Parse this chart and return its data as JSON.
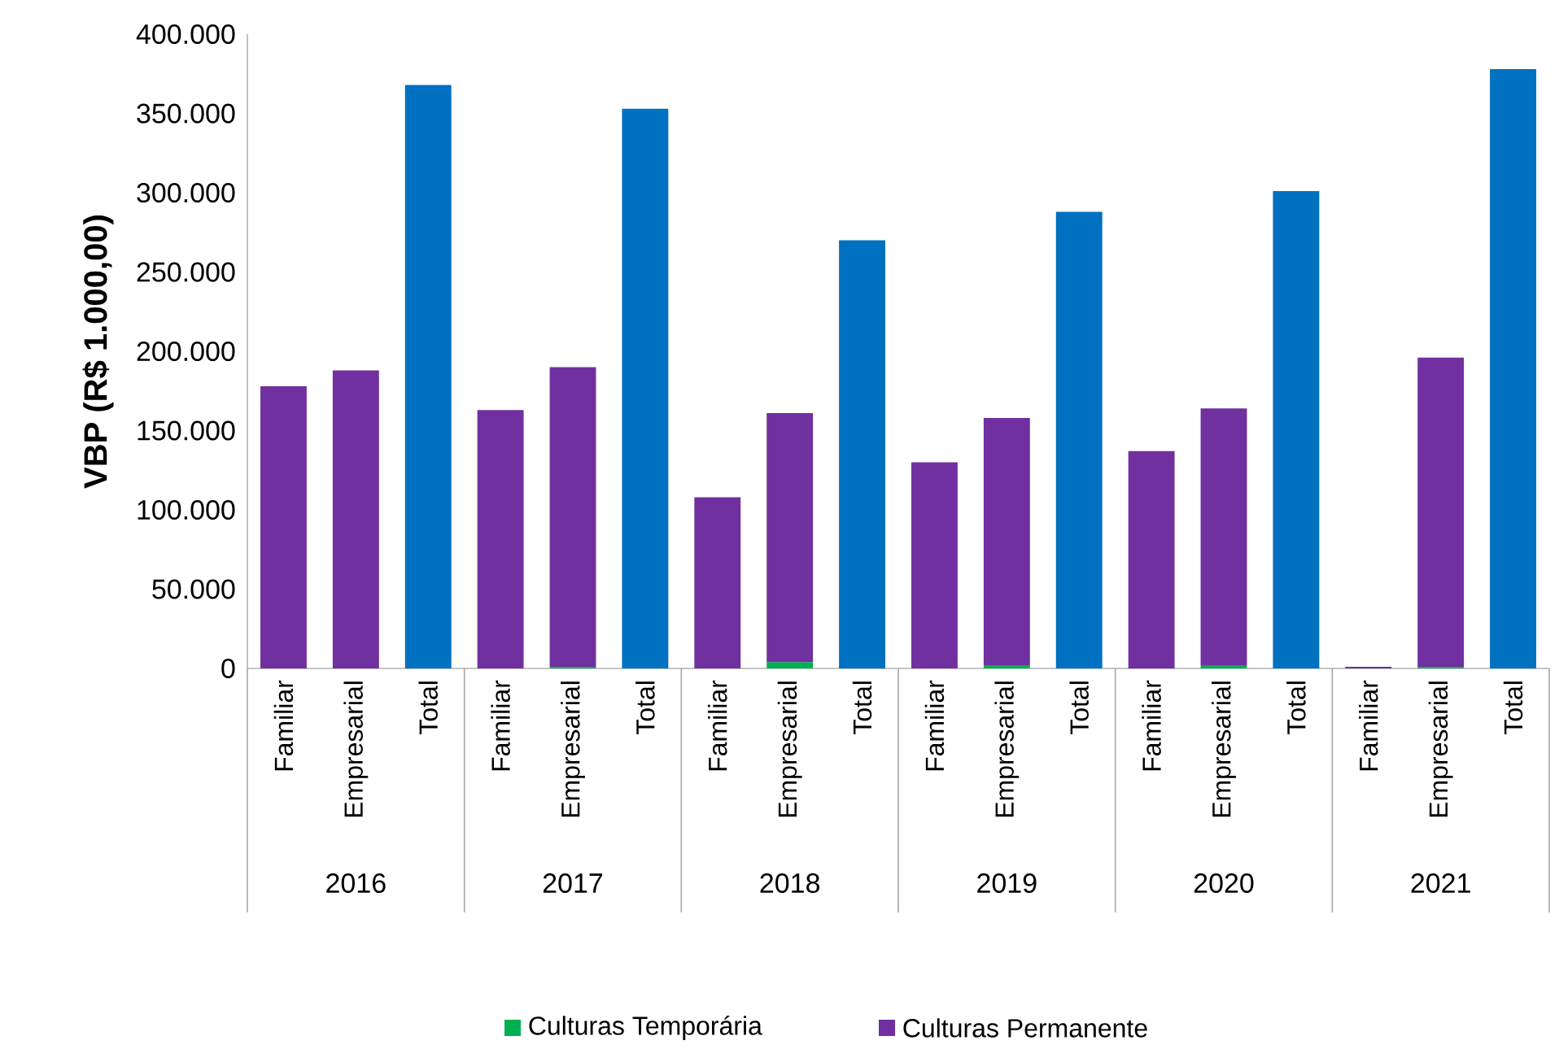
{
  "chart_data": {
    "type": "bar",
    "stacked": true,
    "ylabel": "VBP (R$ 1.000,00)",
    "categories": [
      "Familiar",
      "Empresarial",
      "Total",
      "Familiar",
      "Empresarial",
      "Total",
      "Familiar",
      "Empresarial",
      "Total",
      "Familiar",
      "Empresarial",
      "Total",
      "Familiar",
      "Empresarial",
      "Total",
      "Familiar",
      "Empresarial",
      "Total"
    ],
    "annotations": [
      "2016",
      "2017",
      "2018",
      "2019",
      "2020",
      "2021"
    ],
    "series": [
      {
        "name": "Culturas Temporária",
        "color": "#00b050",
        "values": [
          0,
          0,
          null,
          0,
          1000,
          null,
          0,
          4000,
          null,
          0,
          2000,
          null,
          0,
          2000,
          null,
          0,
          1000,
          null
        ]
      },
      {
        "name": "Culturas Permanente",
        "color": "#7030a0",
        "values": [
          178000,
          188000,
          null,
          163000,
          189000,
          null,
          108000,
          157000,
          null,
          130000,
          156000,
          null,
          137000,
          162000,
          null,
          1000,
          195000,
          null
        ]
      },
      {
        "color": "#0070c0",
        "values": [
          null,
          null,
          368000,
          null,
          null,
          353000,
          null,
          null,
          270000,
          null,
          null,
          288000,
          null,
          null,
          301000,
          null,
          null,
          378000
        ]
      }
    ],
    "ylim": [
      0,
      400000
    ],
    "yticks": [
      {
        "value": 0,
        "label": "0"
      },
      {
        "value": 50000,
        "label": "50.000"
      },
      {
        "value": 100000,
        "label": "100.000"
      },
      {
        "value": 150000,
        "label": "150.000"
      },
      {
        "value": 200000,
        "label": "200.000"
      },
      {
        "value": 250000,
        "label": "250.000"
      },
      {
        "value": 300000,
        "label": "300.000"
      },
      {
        "value": 350000,
        "label": "350.000"
      },
      {
        "value": 400000,
        "label": "400.000"
      }
    ],
    "legend": "bottom"
  }
}
